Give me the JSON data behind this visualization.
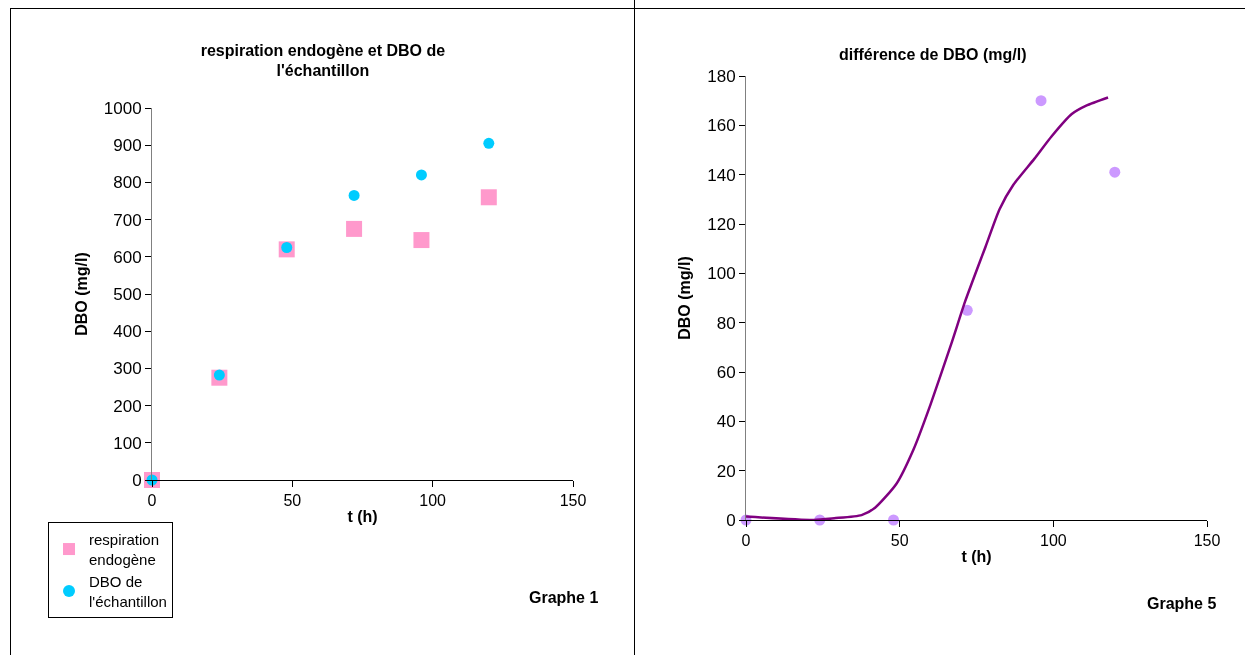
{
  "chart_data": [
    {
      "type": "scatter",
      "title": "respiration endogène et DBO de l'échantillon",
      "xlabel": "t (h)",
      "ylabel": "DBO (mg/l)",
      "x": [
        0,
        24,
        48,
        72,
        96,
        120
      ],
      "series": [
        {
          "name": "respiration endogène",
          "color": "#ff99cc",
          "marker": "square",
          "values": [
            0,
            275,
            620,
            675,
            645,
            760
          ]
        },
        {
          "name": "DBO de l'échantillon",
          "color": "#00ccff",
          "marker": "circle",
          "values": [
            0,
            282,
            625,
            765,
            820,
            905
          ]
        }
      ],
      "xlim": [
        0,
        150
      ],
      "xticks": [
        0,
        50,
        100,
        150
      ],
      "ylim": [
        0,
        1000
      ],
      "yticks": [
        0,
        100,
        200,
        300,
        400,
        500,
        600,
        700,
        800,
        900,
        1000
      ],
      "grid": false,
      "legend": "bottom left",
      "annotations": [
        "Graphe 1"
      ]
    },
    {
      "type": "scatter",
      "title": "différence de DBO (mg/l)",
      "xlabel": "t (h)",
      "ylabel": "DBO (mg/l)",
      "x": [
        0,
        24,
        48,
        72,
        96,
        120
      ],
      "series": [
        {
          "color": "#cc99ff",
          "marker": "circle",
          "values": [
            0,
            0,
            0,
            85,
            170,
            141
          ]
        },
        {
          "type": "line",
          "color": "#800080",
          "marker": "none",
          "line_style": "solid",
          "x": [
            0,
            22,
            28.7,
            37.6,
            42,
            48.9,
            54.5,
            60,
            66.9,
            71.3,
            78,
            82.5,
            87,
            93.8,
            99.4,
            106,
            110.7,
            117.8
          ],
          "values": [
            1.4,
            0,
            0.7,
            2,
            5,
            14.6,
            28.6,
            46.7,
            71.8,
            88.6,
            111,
            126,
            135.9,
            146.4,
            155.5,
            164.6,
            168,
            171.3
          ]
        }
      ],
      "xlim": [
        0,
        150
      ],
      "xticks": [
        0,
        50,
        100,
        150
      ],
      "ylim": [
        0,
        180
      ],
      "yticks": [
        0,
        20,
        40,
        60,
        80,
        100,
        120,
        140,
        160,
        180
      ],
      "grid": false,
      "legend": false,
      "annotations": [
        "Graphe 5"
      ]
    }
  ]
}
